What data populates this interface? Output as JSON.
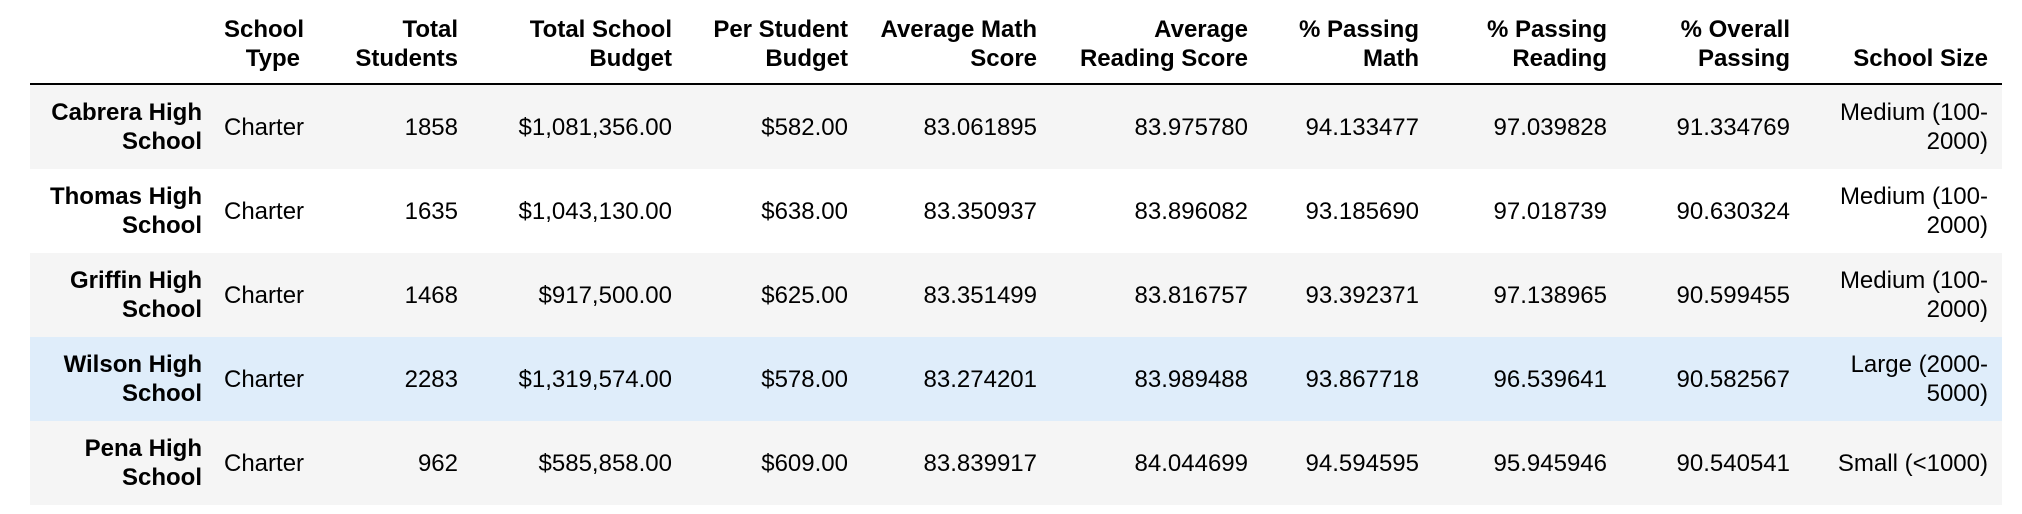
{
  "table": {
    "columns": [
      "",
      "School Type",
      "Total Students",
      "Total School Budget",
      "Per Student Budget",
      "Average Math Score",
      "Average Reading Score",
      "% Passing Math",
      "% Passing Reading",
      "% Overall Passing",
      "School Size"
    ],
    "rows": [
      {
        "name": "Cabrera High School",
        "type": "Charter",
        "students": "1858",
        "budget": "$1,081,356.00",
        "per_student": "$582.00",
        "math": "83.061895",
        "reading": "83.975780",
        "pass_math": "94.133477",
        "pass_reading": "97.039828",
        "overall": "91.334769",
        "size": "Medium (100-2000)"
      },
      {
        "name": "Thomas High School",
        "type": "Charter",
        "students": "1635",
        "budget": "$1,043,130.00",
        "per_student": "$638.00",
        "math": "83.350937",
        "reading": "83.896082",
        "pass_math": "93.185690",
        "pass_reading": "97.018739",
        "overall": "90.630324",
        "size": "Medium (100-2000)"
      },
      {
        "name": "Griffin High School",
        "type": "Charter",
        "students": "1468",
        "budget": "$917,500.00",
        "per_student": "$625.00",
        "math": "83.351499",
        "reading": "83.816757",
        "pass_math": "93.392371",
        "pass_reading": "97.138965",
        "overall": "90.599455",
        "size": "Medium (100-2000)"
      },
      {
        "name": "Wilson High School",
        "type": "Charter",
        "students": "2283",
        "budget": "$1,319,574.00",
        "per_student": "$578.00",
        "math": "83.274201",
        "reading": "83.989488",
        "pass_math": "93.867718",
        "pass_reading": "96.539641",
        "overall": "90.582567",
        "size": "Large (2000-5000)"
      },
      {
        "name": "Pena High School",
        "type": "Charter",
        "students": "962",
        "budget": "$585,858.00",
        "per_student": "$609.00",
        "math": "83.839917",
        "reading": "84.044699",
        "pass_math": "94.594595",
        "pass_reading": "95.945946",
        "overall": "90.540541",
        "size": "Small (<1000)"
      }
    ]
  },
  "colors": {
    "row_odd": "#f5f5f5",
    "row_even": "#ffffff",
    "row_hover": "#dfedfa",
    "header_rule": "#000000"
  }
}
